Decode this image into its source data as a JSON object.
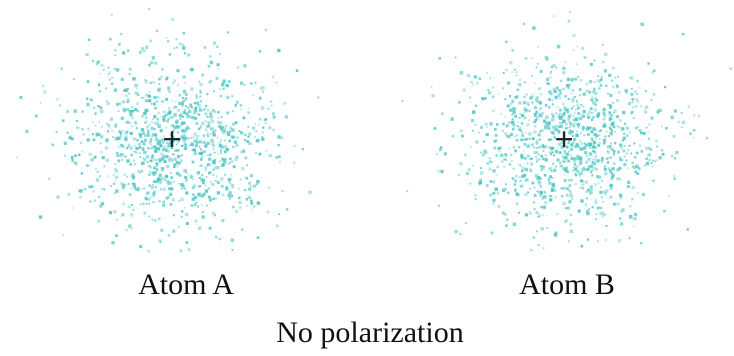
{
  "atoms": [
    {
      "label": "Atom A",
      "nucleus": "+"
    },
    {
      "label": "Atom B",
      "nucleus": "+"
    }
  ],
  "caption": "No polarization"
}
